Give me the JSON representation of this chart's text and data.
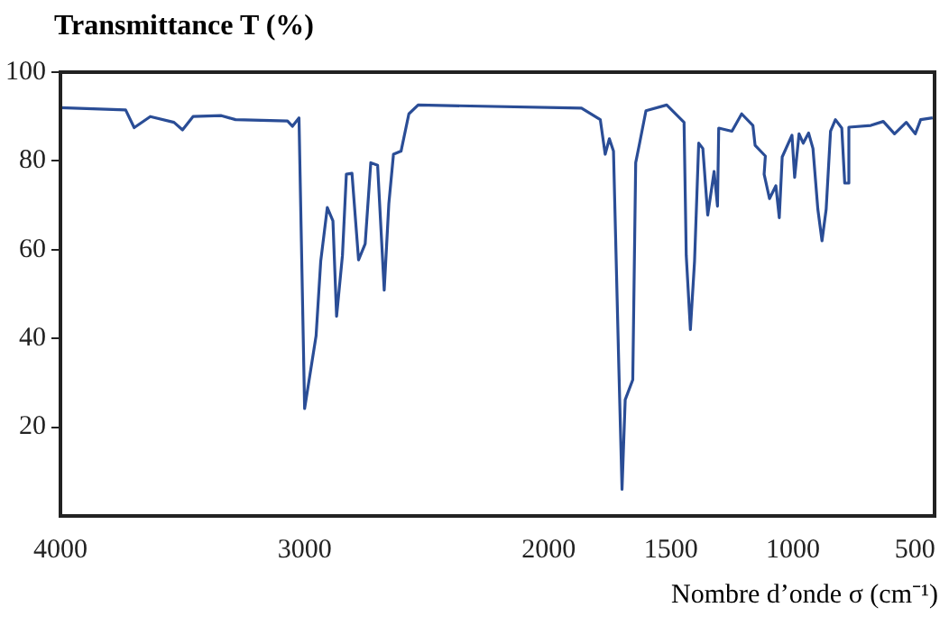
{
  "chart_data": {
    "type": "line",
    "ylabel": "Transmittance T (%)",
    "xlabel": "Nombre d’onde σ  (cm⁻¹)",
    "xlim": [
      4000,
      420
    ],
    "xticks": [
      4000,
      3000,
      2000,
      1500,
      1000,
      500
    ],
    "ylim": [
      0,
      100
    ],
    "yticks": [
      20,
      40,
      60,
      80,
      100
    ],
    "grid": false,
    "legend": false,
    "marker": "none",
    "line_style": "solid",
    "series": [
      {
        "color": "#2a4d96",
        "x": [
          4000,
          3733,
          3698,
          3632,
          3535,
          3500,
          3457,
          3341,
          3283,
          3070,
          3050,
          3023,
          3000,
          2953,
          2934,
          2907,
          2884,
          2869,
          2845,
          2829,
          2806,
          2779,
          2752,
          2729,
          2701,
          2674,
          2655,
          2636,
          2605,
          2573,
          2535,
          1866,
          1789,
          1769,
          1752,
          1735,
          1713,
          1700,
          1687,
          1656,
          1644,
          1628,
          1602,
          1517,
          1446,
          1437,
          1420,
          1403,
          1386,
          1369,
          1349,
          1323,
          1309,
          1304,
          1250,
          1210,
          1164,
          1155,
          1113,
          1118,
          1096,
          1070,
          1056,
          1044,
          1004,
          993,
          975,
          958,
          936,
          918,
          898,
          881,
          864,
          846,
          826,
          800,
          788,
          774,
          771,
          681,
          630,
          584,
          536,
          499,
          477,
          428
        ],
        "values": [
          92,
          91.5,
          87.5,
          90,
          88.7,
          87,
          90,
          90.2,
          89.3,
          89,
          87.8,
          89.7,
          24.2,
          40.6,
          57.4,
          69.5,
          66.5,
          45,
          58.7,
          77,
          77.2,
          57.7,
          61.3,
          79.6,
          79,
          50.9,
          70.4,
          81.5,
          82.2,
          90.6,
          92.6,
          91.9,
          89.3,
          81.5,
          85,
          82.2,
          33.3,
          6,
          26.2,
          30.7,
          79.6,
          84,
          91.3,
          92.6,
          88.7,
          58.7,
          42,
          57.4,
          84,
          82.8,
          67.8,
          77.6,
          69.8,
          87.4,
          86.7,
          90.6,
          88,
          83.5,
          81.1,
          77,
          71.5,
          74.4,
          67.2,
          80.9,
          85.8,
          76.3,
          86.1,
          84,
          86.3,
          82.8,
          69.1,
          62,
          69.1,
          86.7,
          89.3,
          87.4,
          75,
          75,
          87.6,
          88,
          88.9,
          86.1,
          88.7,
          86.1,
          89.3,
          89.7
        ]
      }
    ]
  }
}
